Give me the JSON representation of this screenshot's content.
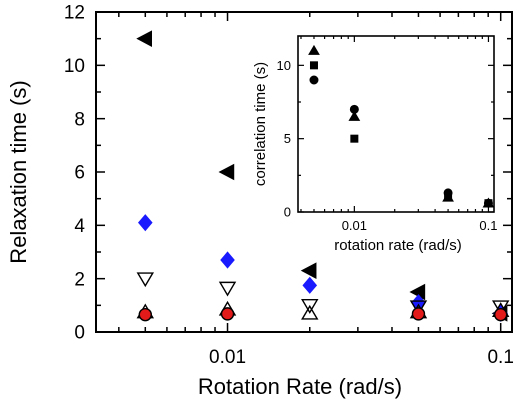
{
  "chart_data": [
    {
      "type": "scatter",
      "xlabel": "Rotation Rate (rad/s)",
      "ylabel": "Relaxation time (s)",
      "xscale": "log",
      "xlim": [
        0.0033,
        0.11
      ],
      "ylim": [
        0,
        12
      ],
      "xtick_labels": [
        "0.01",
        "0.1"
      ],
      "xtick_values": [
        0.01,
        0.1
      ],
      "ytick_labels": [
        "0",
        "2",
        "4",
        "6",
        "8",
        "10",
        "12"
      ],
      "ytick_values": [
        0,
        2,
        4,
        6,
        8,
        10,
        12
      ],
      "grid": false,
      "series": [
        {
          "marker": "triangle-left",
          "color": "#000000",
          "fill": "filled",
          "points": [
            [
              0.005,
              11.0
            ],
            [
              0.01,
              6.0
            ],
            [
              0.02,
              2.3
            ],
            [
              0.05,
              1.5
            ],
            [
              0.1,
              0.7
            ]
          ]
        },
        {
          "marker": "diamond",
          "color": "#1a1aff",
          "fill": "filled",
          "points": [
            [
              0.005,
              4.1
            ],
            [
              0.01,
              2.7
            ],
            [
              0.02,
              1.75
            ],
            [
              0.05,
              1.1
            ],
            [
              0.1,
              0.7
            ]
          ]
        },
        {
          "marker": "triangle-down",
          "color": "#000000",
          "fill": "open",
          "points": [
            [
              0.005,
              2.0
            ],
            [
              0.01,
              1.65
            ],
            [
              0.02,
              1.0
            ],
            [
              0.05,
              0.95
            ],
            [
              0.1,
              0.95
            ]
          ]
        },
        {
          "marker": "triangle-up",
          "color": "#000000",
          "fill": "open",
          "points": [
            [
              0.005,
              0.75
            ],
            [
              0.01,
              0.85
            ],
            [
              0.02,
              0.7
            ],
            [
              0.05,
              0.75
            ],
            [
              0.1,
              0.8
            ]
          ]
        },
        {
          "marker": "circle",
          "color": "#e31a1a",
          "fill": "filled",
          "points": [
            [
              0.005,
              0.65
            ],
            [
              0.01,
              0.68
            ],
            [
              0.05,
              0.68
            ],
            [
              0.1,
              0.65
            ]
          ]
        }
      ]
    },
    {
      "type": "scatter",
      "xlabel": "rotation rate (rad/s)",
      "ylabel": "correlation time (s)",
      "xscale": "log",
      "xlim": [
        0.0038,
        0.11
      ],
      "ylim": [
        0,
        12
      ],
      "xtick_labels": [
        "0.01",
        "0.1"
      ],
      "xtick_values": [
        0.01,
        0.1
      ],
      "ytick_labels": [
        "0",
        "5",
        "10"
      ],
      "ytick_values": [
        0,
        5,
        10
      ],
      "grid": false,
      "series": [
        {
          "marker": "triangle-up",
          "color": "#000000",
          "fill": "filled",
          "points": [
            [
              0.005,
              11.0
            ],
            [
              0.01,
              6.5
            ],
            [
              0.05,
              1.0
            ],
            [
              0.1,
              0.6
            ]
          ]
        },
        {
          "marker": "square",
          "color": "#000000",
          "fill": "filled",
          "points": [
            [
              0.005,
              10.0
            ],
            [
              0.01,
              5.0
            ],
            [
              0.05,
              1.0
            ],
            [
              0.1,
              0.6
            ]
          ]
        },
        {
          "marker": "circle",
          "color": "#000000",
          "fill": "filled",
          "points": [
            [
              0.005,
              9.0
            ],
            [
              0.01,
              7.0
            ],
            [
              0.05,
              1.3
            ],
            [
              0.1,
              0.6
            ]
          ]
        }
      ]
    }
  ]
}
